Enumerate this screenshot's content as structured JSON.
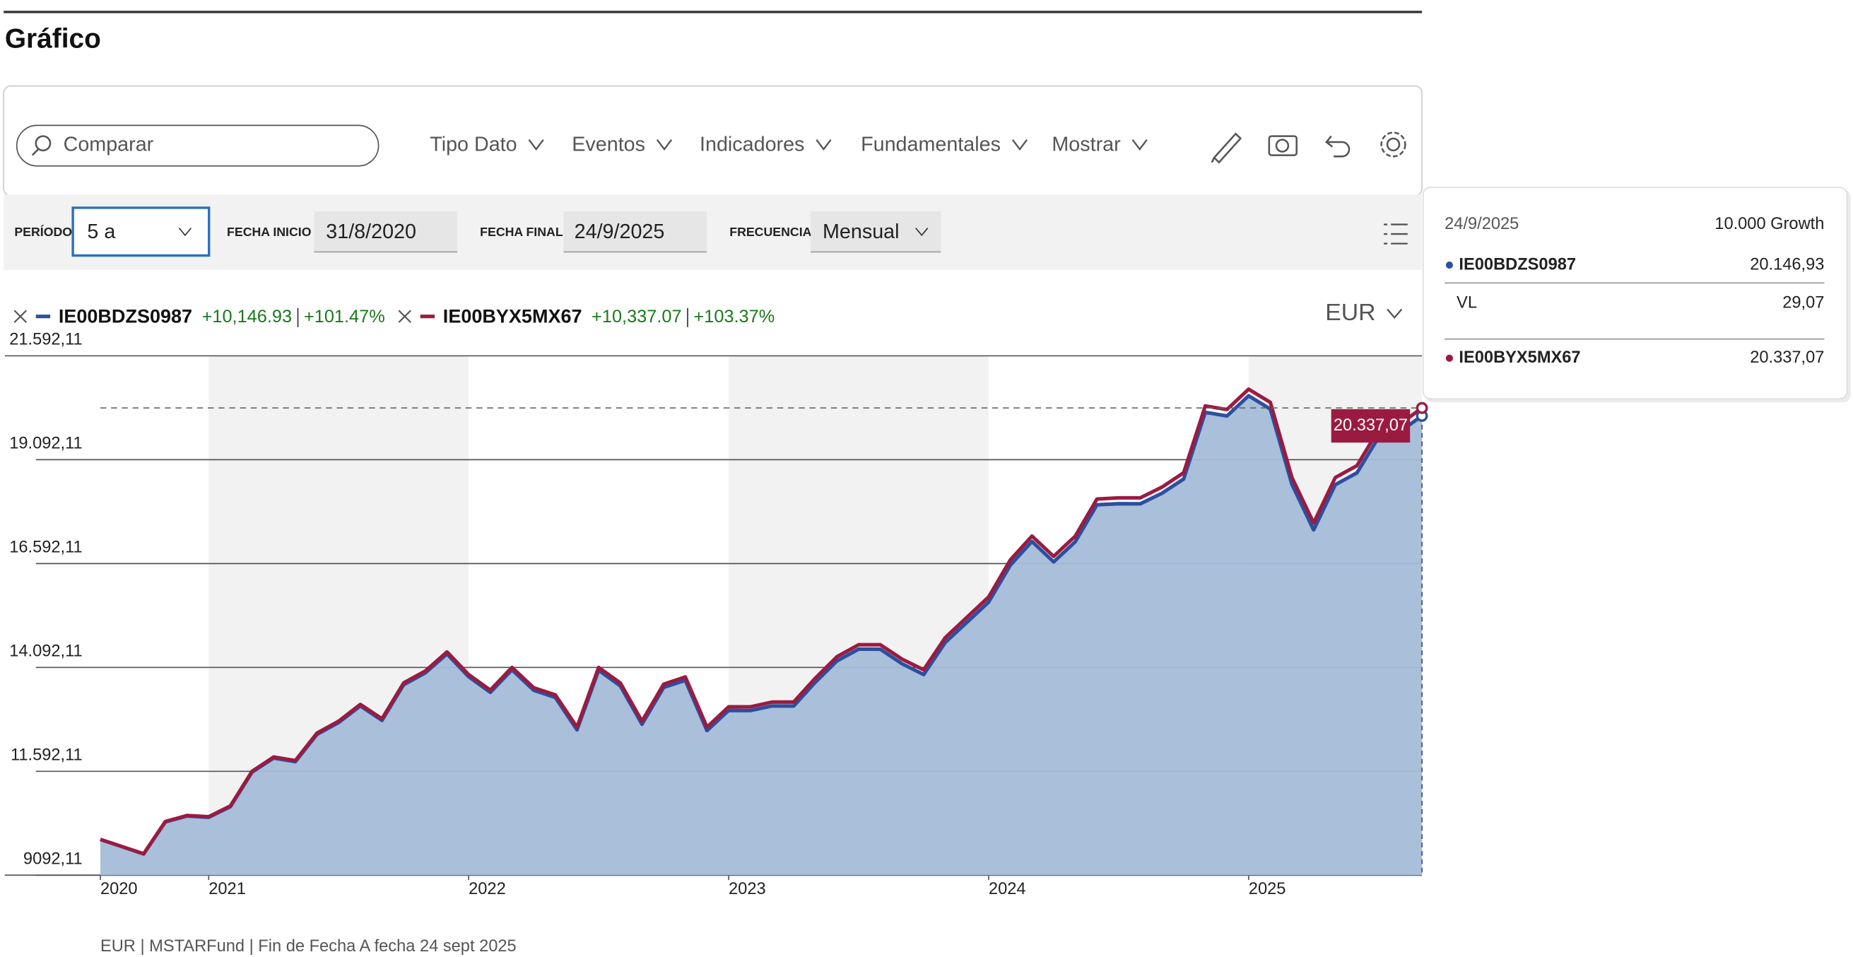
{
  "header": {
    "title": "Gráfico"
  },
  "toolbar": {
    "search_placeholder": "Comparar",
    "menus": [
      "Tipo Dato",
      "Eventos",
      "Indicadores",
      "Fundamentales",
      "Mostrar"
    ]
  },
  "controls": {
    "period_label": "PERÍODO",
    "period": "5 a",
    "start_label": "FECHA INICIO",
    "start": "31/8/2020",
    "end_label": "FECHA FINAL",
    "end": "24/9/2025",
    "frequency_label": "FRECUENCIA",
    "frequency": "Mensual"
  },
  "currency": "EUR",
  "tooltip": {
    "date": "24/9/2025",
    "basis": "10.000 Growth",
    "rows": [
      {
        "name": "IE00BDZS0987",
        "value": "20.146,93"
      },
      {
        "name": "VL",
        "value": "29,07"
      },
      {
        "name": "IE00BYX5MX67",
        "value": "20.337,07"
      }
    ]
  },
  "footer": "EUR | MSTARFund | Fin de Fecha A fecha 24 sept 2025",
  "chart_data": {
    "type": "area_line",
    "categories": [
      "2020",
      null,
      null,
      null,
      null,
      "2021",
      null,
      null,
      null,
      null,
      null,
      null,
      null,
      null,
      null,
      null,
      null,
      "2022",
      null,
      null,
      null,
      null,
      null,
      null,
      null,
      null,
      null,
      null,
      null,
      "2023",
      null,
      null,
      null,
      null,
      null,
      null,
      null,
      null,
      null,
      null,
      null,
      "2024",
      null,
      null,
      null,
      null,
      null,
      null,
      null,
      null,
      null,
      null,
      null,
      "2025",
      null,
      null,
      null,
      null,
      null,
      null,
      null,
      null
    ],
    "series": [
      {
        "name": "IE00BDZS0987",
        "color": "#2c4f9e",
        "change": "+10,146.93",
        "change_pct": "+101.47%",
        "values": [
          9954,
          9779,
          9603,
          10376,
          10517,
          10485,
          10741,
          11571,
          11913,
          11824,
          12482,
          12766,
          13166,
          12818,
          13677,
          13962,
          14418,
          13869,
          13493,
          14036,
          13544,
          13369,
          12590,
          14024,
          13647,
          12724,
          13612,
          13782,
          12572,
          13057,
          13054,
          13166,
          13163,
          13735,
          14249,
          14534,
          14531,
          14183,
          13921,
          14694,
          15180,
          15665,
          16553,
          17125,
          16633,
          17119,
          18007,
          18033,
          18030,
          18285,
          18627,
          20233,
          20144,
          20630,
          20311,
          18497,
          17402,
          18491,
          18775,
          19635,
          19775,
          20146.93
        ]
      },
      {
        "name": "IE00BYX5MX67",
        "color": "#9b1b40",
        "change": "+10,337.07",
        "change_pct": "+103.37%",
        "values": [
          9954,
          9782,
          9609,
          10385,
          10529,
          10500,
          10759,
          11592,
          11937,
          11851,
          12512,
          12799,
          13202,
          12857,
          13719,
          14007,
          14466,
          13920,
          13547,
          14093,
          13604,
          13432,
          12656,
          14093,
          13719,
          12799,
          13690,
          13863,
          12656,
          13144,
          13144,
          13259,
          13259,
          13834,
          14351,
          14639,
          14639,
          14294,
          14035,
          14811,
          15300,
          15788,
          16679,
          17254,
          16765,
          17254,
          18145,
          18174,
          18174,
          18432,
          18777,
          20386,
          20300,
          20789,
          20473,
          18662,
          17570,
          18662,
          18949,
          19812,
          19955,
          20337.07
        ],
        "value_labels": [
          null,
          null,
          null,
          null,
          null,
          null,
          null,
          null,
          null,
          null,
          null,
          null,
          null,
          null,
          null,
          null,
          null,
          null,
          null,
          null,
          null,
          null,
          null,
          null,
          null,
          null,
          null,
          null,
          null,
          null,
          null,
          null,
          null,
          null,
          null,
          null,
          null,
          null,
          null,
          null,
          null,
          null,
          null,
          null,
          null,
          null,
          null,
          null,
          null,
          null,
          null,
          null,
          null,
          null,
          null,
          null,
          null,
          null,
          null,
          null,
          null,
          "20.337,07"
        ]
      }
    ],
    "area_color": "#a4bcd8",
    "band_color": "#f2f2f2",
    "ylim": [
      9092.11,
      21592.11
    ],
    "yticks": [
      {
        "value": 9092.11,
        "label": "9092,11"
      },
      {
        "value": 11592.11,
        "label": "11.592,11"
      },
      {
        "value": 14092.11,
        "label": "14.092,11"
      },
      {
        "value": 16592.11,
        "label": "16.592,11"
      },
      {
        "value": 19092.11,
        "label": "19.092,11"
      },
      {
        "value": 21592.11,
        "label": "21.592,11"
      }
    ],
    "grid": true
  }
}
